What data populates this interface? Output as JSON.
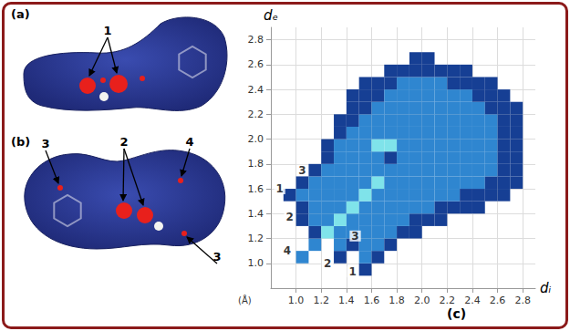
{
  "panels": [
    {
      "label": "(a)",
      "callouts": [
        "1"
      ]
    },
    {
      "label": "(b)",
      "callouts": [
        "3",
        "2",
        "4",
        "3"
      ]
    }
  ],
  "chart_data": {
    "type": "heatmap",
    "label": "(c)",
    "x_label": "dᵢ",
    "y_label": "dₑ",
    "unit_label": "(Å)",
    "xlim": [
      0.8,
      2.9
    ],
    "ylim": [
      0.8,
      2.9
    ],
    "xticks": [
      {
        "value": 1,
        "label": "1.0"
      },
      1.2,
      1.4,
      1.6,
      1.8,
      {
        "value": 2,
        "label": "2.0"
      },
      2.2,
      2.4,
      2.6,
      2.8
    ],
    "yticks": [
      {
        "value": 1,
        "label": "1.0"
      },
      1.2,
      1.4,
      1.6,
      1.8,
      {
        "value": 2,
        "label": "2.0"
      },
      2.2,
      2.4,
      2.6,
      2.8
    ],
    "grid": true,
    "x_bins": [
      0.8,
      0.9,
      1,
      1.1,
      1.2,
      1.3,
      1.4,
      1.5,
      1.6,
      1.7,
      1.8,
      1.9,
      2,
      2.1,
      2.2,
      2.3,
      2.4,
      2.5,
      2.6,
      2.7,
      2.8
    ],
    "y_bins": [
      0.8,
      0.9,
      1,
      1.1,
      1.2,
      1.3,
      1.4,
      1.5,
      1.6,
      1.7,
      1.8,
      1.9,
      2,
      2.1,
      2.2,
      2.3,
      2.4,
      2.5,
      2.6,
      2.7
    ],
    "cell_range": [
      1,
      3
    ],
    "cells": [
      [
        null,
        null,
        null,
        null,
        null,
        null,
        null,
        null,
        null,
        null,
        null,
        null,
        null,
        null,
        null,
        null,
        null,
        null,
        null,
        null
      ],
      [
        null,
        null,
        null,
        null,
        null,
        null,
        null,
        1,
        null,
        null,
        null,
        null,
        null,
        null,
        null,
        null,
        null,
        null,
        null,
        null
      ],
      [
        null,
        null,
        2,
        null,
        null,
        1,
        null,
        2,
        1,
        null,
        null,
        null,
        null,
        null,
        null,
        null,
        null,
        null,
        null,
        null
      ],
      [
        null,
        null,
        null,
        2,
        null,
        2,
        1,
        2,
        2,
        1,
        null,
        null,
        null,
        null,
        null,
        null,
        null,
        null,
        null,
        null
      ],
      [
        null,
        null,
        null,
        1,
        3,
        2,
        2,
        2,
        2,
        2,
        1,
        1,
        null,
        null,
        null,
        null,
        null,
        null,
        null,
        null
      ],
      [
        null,
        null,
        1,
        2,
        2,
        3,
        2,
        2,
        2,
        2,
        2,
        1,
        1,
        1,
        null,
        null,
        null,
        null,
        null,
        null
      ],
      [
        null,
        null,
        1,
        2,
        2,
        2,
        3,
        2,
        2,
        2,
        2,
        2,
        2,
        1,
        1,
        1,
        1,
        null,
        null,
        null
      ],
      [
        null,
        1,
        2,
        2,
        2,
        2,
        2,
        3,
        2,
        2,
        2,
        2,
        2,
        2,
        2,
        1,
        1,
        1,
        1,
        null
      ],
      [
        null,
        null,
        1,
        2,
        2,
        2,
        2,
        2,
        3,
        2,
        2,
        2,
        2,
        2,
        2,
        2,
        2,
        1,
        1,
        1
      ],
      [
        null,
        null,
        null,
        1,
        2,
        2,
        2,
        2,
        2,
        2,
        2,
        2,
        2,
        2,
        2,
        2,
        2,
        2,
        1,
        1
      ],
      [
        null,
        null,
        null,
        null,
        1,
        2,
        2,
        2,
        2,
        1,
        2,
        2,
        2,
        2,
        2,
        2,
        2,
        2,
        1,
        1
      ],
      [
        null,
        null,
        null,
        null,
        1,
        2,
        2,
        2,
        3,
        3,
        2,
        2,
        2,
        2,
        2,
        2,
        2,
        2,
        1,
        1
      ],
      [
        null,
        null,
        null,
        null,
        null,
        1,
        2,
        2,
        2,
        2,
        2,
        2,
        2,
        2,
        2,
        2,
        2,
        2,
        1,
        1
      ],
      [
        null,
        null,
        null,
        null,
        null,
        1,
        1,
        2,
        2,
        2,
        2,
        2,
        2,
        2,
        2,
        2,
        2,
        2,
        1,
        1
      ],
      [
        null,
        null,
        null,
        null,
        null,
        null,
        1,
        1,
        2,
        2,
        2,
        2,
        2,
        2,
        2,
        2,
        2,
        1,
        1,
        1
      ],
      [
        null,
        null,
        null,
        null,
        null,
        null,
        1,
        1,
        1,
        2,
        2,
        2,
        2,
        2,
        2,
        2,
        1,
        1,
        1,
        null
      ],
      [
        null,
        null,
        null,
        null,
        null,
        null,
        null,
        1,
        1,
        1,
        2,
        2,
        2,
        2,
        1,
        1,
        1,
        1,
        null,
        null
      ],
      [
        null,
        null,
        null,
        null,
        null,
        null,
        null,
        null,
        null,
        1,
        1,
        1,
        1,
        1,
        1,
        1,
        null,
        null,
        null,
        null
      ],
      [
        null,
        null,
        null,
        null,
        null,
        null,
        null,
        null,
        null,
        null,
        null,
        1,
        1,
        null,
        null,
        null,
        null,
        null,
        null,
        null
      ]
    ],
    "annotations": [
      {
        "text": "1",
        "x": 0.87,
        "y": 1.6
      },
      {
        "text": "3",
        "x": 1.05,
        "y": 1.75
      },
      {
        "text": "2",
        "x": 0.95,
        "y": 1.37
      },
      {
        "text": "4",
        "x": 0.93,
        "y": 1.1
      },
      {
        "text": "2",
        "x": 1.25,
        "y": 1.0
      },
      {
        "text": "3",
        "x": 1.47,
        "y": 1.22
      },
      {
        "text": "1",
        "x": 1.45,
        "y": 0.93
      }
    ]
  }
}
